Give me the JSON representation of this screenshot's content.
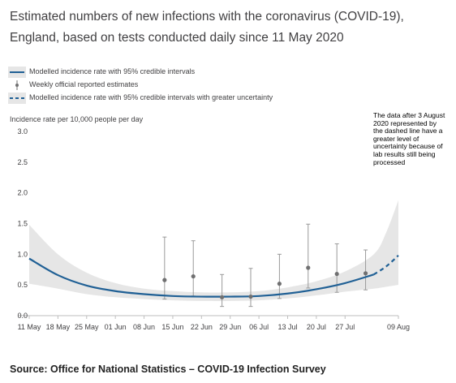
{
  "header": {
    "title": "Estimated numbers of new infections with the coronavirus (COVID-19), England, based on tests conducted daily since 11 May 2020"
  },
  "legend": {
    "items": [
      {
        "label": "Modelled incidence rate with 95% credible intervals",
        "kind": "solid-line"
      },
      {
        "label": "Weekly official reported estimates",
        "kind": "error-bar"
      },
      {
        "label": "Modelled incidence rate with 95% credible intervals with greater uncertainty",
        "kind": "dashed-line"
      }
    ]
  },
  "annotation": {
    "text": "The data after 3 August 2020 represented by the dashed line have a greater level of uncertainty because of lab results still being processed"
  },
  "source": {
    "text": "Source: Office for National Statistics – COVID-19 Infection Survey"
  },
  "colors": {
    "model_line": "#206095",
    "interval_band": "#e6e6e6",
    "point": "#707071",
    "axis": "#bebebe",
    "text": "#414042"
  },
  "chart_data": {
    "type": "line",
    "title": "Estimated numbers of new infections with the coronavirus (COVID-19), England, based on tests conducted daily since 11 May 2020",
    "ylabel": "Incidence rate per 10,000 people per day",
    "xlabel": "",
    "ylim": [
      0,
      3
    ],
    "yticks": [
      0.0,
      0.5,
      1.0,
      1.5,
      2.0,
      2.5,
      3.0
    ],
    "ytick_labels": [
      "0.0",
      "0.5",
      "1.0",
      "1.5",
      "2.0",
      "2.5",
      "3.0"
    ],
    "xlim": [
      "2020-05-11",
      "2020-08-09"
    ],
    "xticks": [
      "2020-05-11",
      "2020-05-18",
      "2020-05-25",
      "2020-06-01",
      "2020-06-08",
      "2020-06-15",
      "2020-06-22",
      "2020-06-29",
      "2020-07-06",
      "2020-07-13",
      "2020-07-20",
      "2020-07-27",
      "2020-08-09"
    ],
    "xtick_labels": [
      "11 May",
      "18 May",
      "25 May",
      "01 Jun",
      "08 Jun",
      "15 Jun",
      "22 Jun",
      "29 Jun",
      "06 Jul",
      "13 Jul",
      "20 Jul",
      "27 Jul",
      "09 Aug"
    ],
    "grid": false,
    "legend_position": "top-left",
    "series": [
      {
        "name": "Modelled incidence rate with 95% credible intervals",
        "style": "solid",
        "x": [
          "2020-05-11",
          "2020-05-18",
          "2020-05-25",
          "2020-06-01",
          "2020-06-08",
          "2020-06-15",
          "2020-06-22",
          "2020-06-29",
          "2020-07-06",
          "2020-07-13",
          "2020-07-20",
          "2020-07-27",
          "2020-08-03"
        ],
        "y": [
          0.93,
          0.66,
          0.49,
          0.4,
          0.35,
          0.32,
          0.31,
          0.31,
          0.32,
          0.36,
          0.43,
          0.53,
          0.67
        ],
        "lower": [
          0.52,
          0.44,
          0.35,
          0.3,
          0.27,
          0.25,
          0.24,
          0.24,
          0.25,
          0.28,
          0.33,
          0.39,
          0.44
        ],
        "upper": [
          1.48,
          1.0,
          0.7,
          0.53,
          0.44,
          0.4,
          0.38,
          0.38,
          0.4,
          0.46,
          0.56,
          0.72,
          1.0
        ]
      },
      {
        "name": "Modelled incidence rate with 95% credible intervals with greater uncertainty",
        "style": "dashed",
        "x": [
          "2020-08-03",
          "2020-08-06",
          "2020-08-09"
        ],
        "y": [
          0.67,
          0.8,
          0.98
        ],
        "lower": [
          0.44,
          0.47,
          0.5
        ],
        "upper": [
          1.0,
          1.35,
          1.88
        ]
      },
      {
        "name": "Weekly official reported estimates",
        "style": "points",
        "x": [
          "2020-06-13",
          "2020-06-20",
          "2020-06-27",
          "2020-07-04",
          "2020-07-11",
          "2020-07-18",
          "2020-07-25",
          "2020-08-01"
        ],
        "y": [
          0.58,
          0.64,
          0.3,
          0.31,
          0.52,
          0.78,
          0.68,
          0.69
        ],
        "lower": [
          0.27,
          0.32,
          0.15,
          0.15,
          0.28,
          0.45,
          0.38,
          0.42
        ],
        "upper": [
          1.28,
          1.22,
          0.67,
          0.77,
          1.0,
          1.49,
          1.17,
          1.07
        ]
      }
    ]
  }
}
